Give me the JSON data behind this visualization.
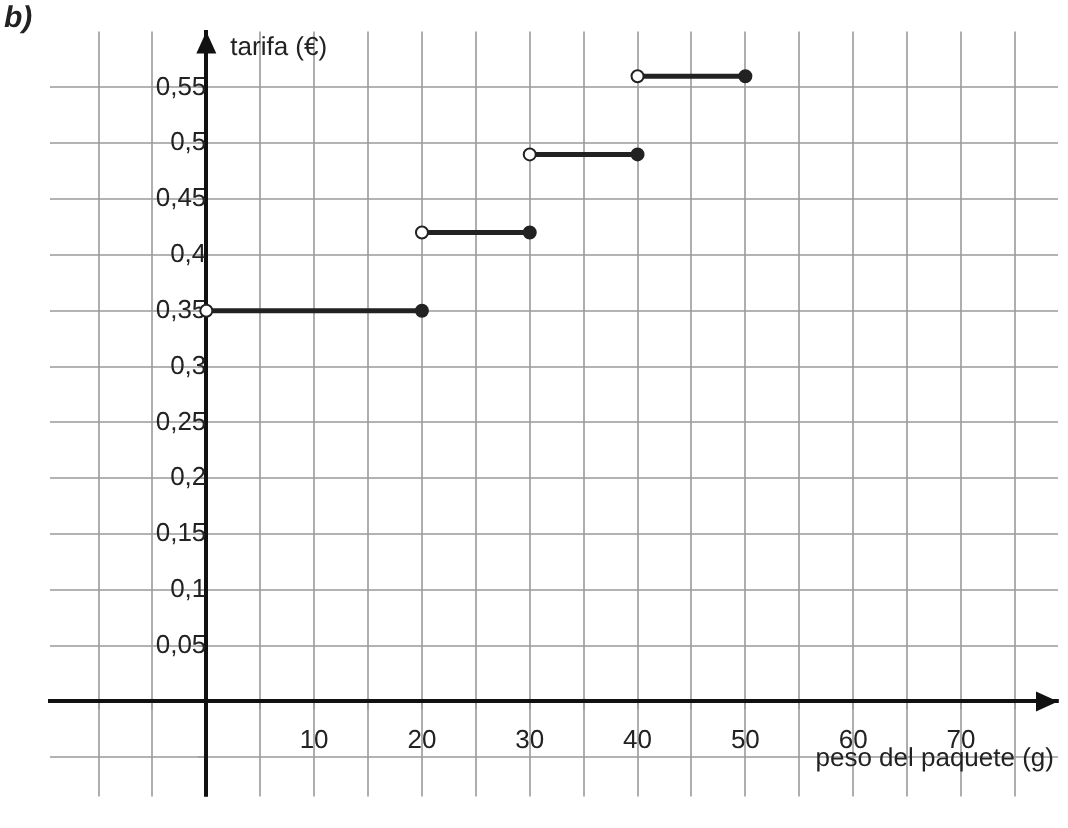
{
  "chart_data": {
    "type": "step",
    "xlabel": "peso del paquete (g)",
    "ylabel": "tarifa (€)",
    "annotations": [
      "b)"
    ],
    "xlim": [
      -14.5,
      79
    ],
    "ylim": [
      -0.085,
      0.6
    ],
    "xticks": [
      {
        "value": -10,
        "label": null
      },
      {
        "value": -5,
        "label": null
      },
      {
        "value": 0,
        "label": null
      },
      {
        "value": 5,
        "label": null
      },
      10,
      {
        "value": 15,
        "label": null
      },
      20,
      {
        "value": 25,
        "label": null
      },
      30,
      {
        "value": 35,
        "label": null
      },
      40,
      {
        "value": 45,
        "label": null
      },
      50,
      {
        "value": 55,
        "label": null
      },
      60,
      {
        "value": 65,
        "label": null
      },
      70,
      {
        "value": 75,
        "label": null
      }
    ],
    "yticks": [
      {
        "value": -0.05,
        "label": null
      },
      {
        "value": 0,
        "label": null
      },
      {
        "value": 0.05,
        "label": "0,05"
      },
      {
        "value": 0.1,
        "label": "0,1"
      },
      {
        "value": 0.15,
        "label": "0,15"
      },
      {
        "value": 0.2,
        "label": "0,2"
      },
      {
        "value": 0.25,
        "label": "0,25"
      },
      {
        "value": 0.3,
        "label": "0,3"
      },
      {
        "value": 0.35,
        "label": "0,35"
      },
      {
        "value": 0.4,
        "label": "0,4"
      },
      {
        "value": 0.45,
        "label": "0,45"
      },
      {
        "value": 0.5,
        "label": "0,5"
      },
      {
        "value": 0.55,
        "label": "0,55"
      }
    ],
    "grid": true,
    "marker": "circle",
    "line_style": "solid",
    "series": [
      {
        "color": "#222222",
        "x": [
          0,
          20
        ],
        "values": [
          0.35,
          0.35
        ]
      },
      {
        "color": "#222222",
        "x": [
          20,
          30
        ],
        "values": [
          0.42,
          0.42
        ]
      },
      {
        "color": "#222222",
        "x": [
          30,
          40
        ],
        "values": [
          0.49,
          0.49
        ]
      },
      {
        "color": "#222222",
        "x": [
          40,
          50
        ],
        "values": [
          0.56,
          0.56
        ]
      }
    ]
  }
}
